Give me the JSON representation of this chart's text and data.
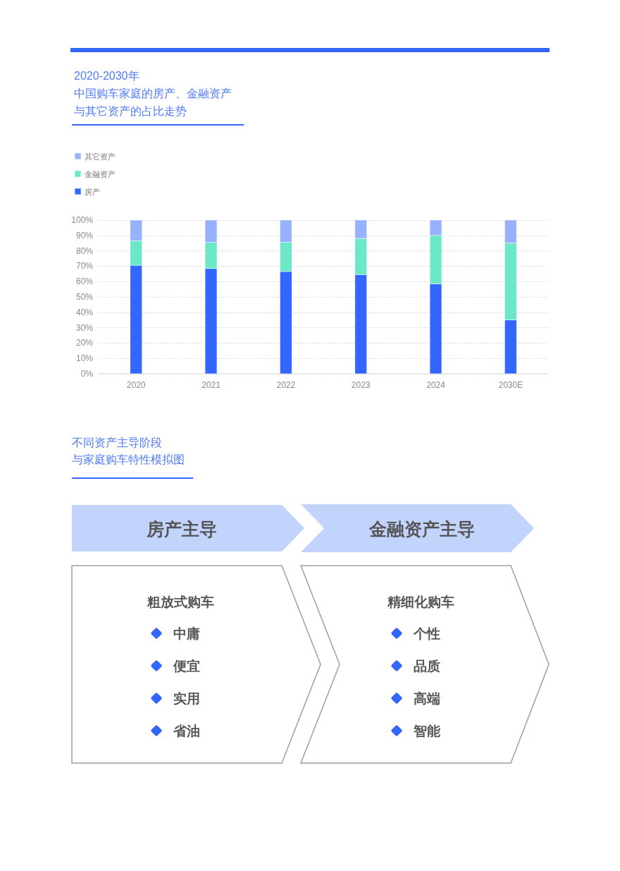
{
  "chart_data": [
    {
      "type": "bar",
      "title": "2020-2030年",
      "subtitle": "中国购车家庭的房产、金融资产与其它资产的占比走势",
      "categories": [
        "2020",
        "2021",
        "2022",
        "2023",
        "2024",
        "2030E"
      ],
      "stacked": true,
      "series": [
        {
          "name": "房产",
          "color": "#3366ff",
          "values": [
            70.5,
            68.5,
            66.5,
            64.5,
            58.5,
            35
          ]
        },
        {
          "name": "金融资产",
          "color": "#6ce8c8",
          "values": [
            16,
            17,
            19,
            23.5,
            31.5,
            50
          ]
        },
        {
          "name": "其它资产",
          "color": "#97b1ff",
          "values": [
            13.5,
            14.5,
            14.5,
            12,
            10,
            15
          ]
        }
      ],
      "ylim": [
        0,
        100
      ],
      "yticks": [
        {
          "value": 0,
          "label": "0%"
        },
        {
          "value": 10,
          "label": "10%"
        },
        {
          "value": 20,
          "label": "20%"
        },
        {
          "value": 30,
          "label": "30%"
        },
        {
          "value": 40,
          "label": "40%"
        },
        {
          "value": 50,
          "label": "50%"
        },
        {
          "value": 60,
          "label": "60%"
        },
        {
          "value": 70,
          "label": "70%"
        },
        {
          "value": 80,
          "label": "80%"
        },
        {
          "value": 90,
          "label": "90%"
        },
        {
          "value": 100,
          "label": "100%"
        }
      ],
      "grid": "y",
      "legend": "top left"
    },
    {
      "type": "other",
      "title": "不同资产主导阶段",
      "subtitle": "与家庭购车特性模拟图",
      "categories": [
        "房产主导",
        "金融资产主导"
      ],
      "annotations": [
        "粗放式购车",
        "中庸",
        "便宜",
        "实用",
        "省油",
        "精细化购车",
        "个性",
        "品质",
        "高端",
        "智能"
      ]
    }
  ]
}
